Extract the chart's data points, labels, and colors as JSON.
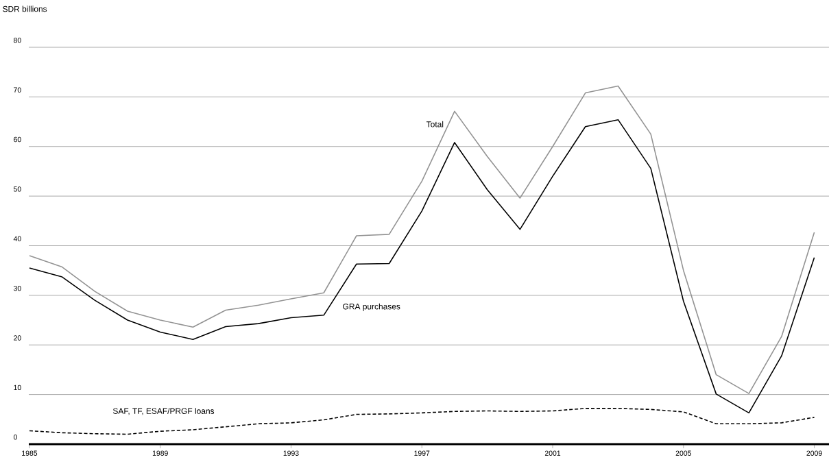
{
  "chart_data": {
    "type": "line",
    "ylabel": "SDR billions",
    "x": [
      1985,
      1986,
      1987,
      1988,
      1989,
      1990,
      1991,
      1992,
      1993,
      1994,
      1995,
      1996,
      1997,
      1998,
      1999,
      2000,
      2001,
      2002,
      2003,
      2004,
      2005,
      2006,
      2007,
      2008,
      2009
    ],
    "series": [
      {
        "name": "Total",
        "color": "#939393",
        "line_style": "solid",
        "values": [
          38,
          35.7,
          30.8,
          26.8,
          25,
          23.6,
          27,
          28,
          29.3,
          30.5,
          42,
          42.3,
          53,
          67.1,
          58,
          49.6,
          60,
          70.8,
          72.2,
          62.5,
          35,
          14,
          10.2,
          21.7,
          42.7
        ]
      },
      {
        "name": "GRA purchases",
        "color": "#000000",
        "line_style": "solid",
        "values": [
          35.5,
          33.7,
          29,
          25,
          22.6,
          21.1,
          23.7,
          24.3,
          25.5,
          26,
          36.3,
          36.4,
          47,
          60.8,
          51.3,
          43.3,
          54,
          64,
          65.4,
          55.6,
          28.8,
          10.1,
          6.3,
          17.8,
          37.6
        ]
      },
      {
        "name": "SAF, TF, ESAF/PRGF loans",
        "color": "#000000",
        "line_style": "dashed",
        "values": [
          2.7,
          2.3,
          2.1,
          2.0,
          2.6,
          2.9,
          3.5,
          4.1,
          4.3,
          4.9,
          6.0,
          6.1,
          6.3,
          6.6,
          6.7,
          6.6,
          6.7,
          7.2,
          7.2,
          7.0,
          6.5,
          4.1,
          4.1,
          4.3,
          5.4
        ]
      }
    ],
    "xlim": [
      1984.98,
      2009.45
    ],
    "ylim": [
      0,
      80
    ],
    "xticks": [
      1985,
      1989,
      1993,
      1997,
      2001,
      2005,
      2009
    ],
    "yticks": [
      0,
      10,
      20,
      30,
      40,
      50,
      60,
      70,
      80
    ],
    "grid": "y",
    "legend": false,
    "marker": "none"
  }
}
